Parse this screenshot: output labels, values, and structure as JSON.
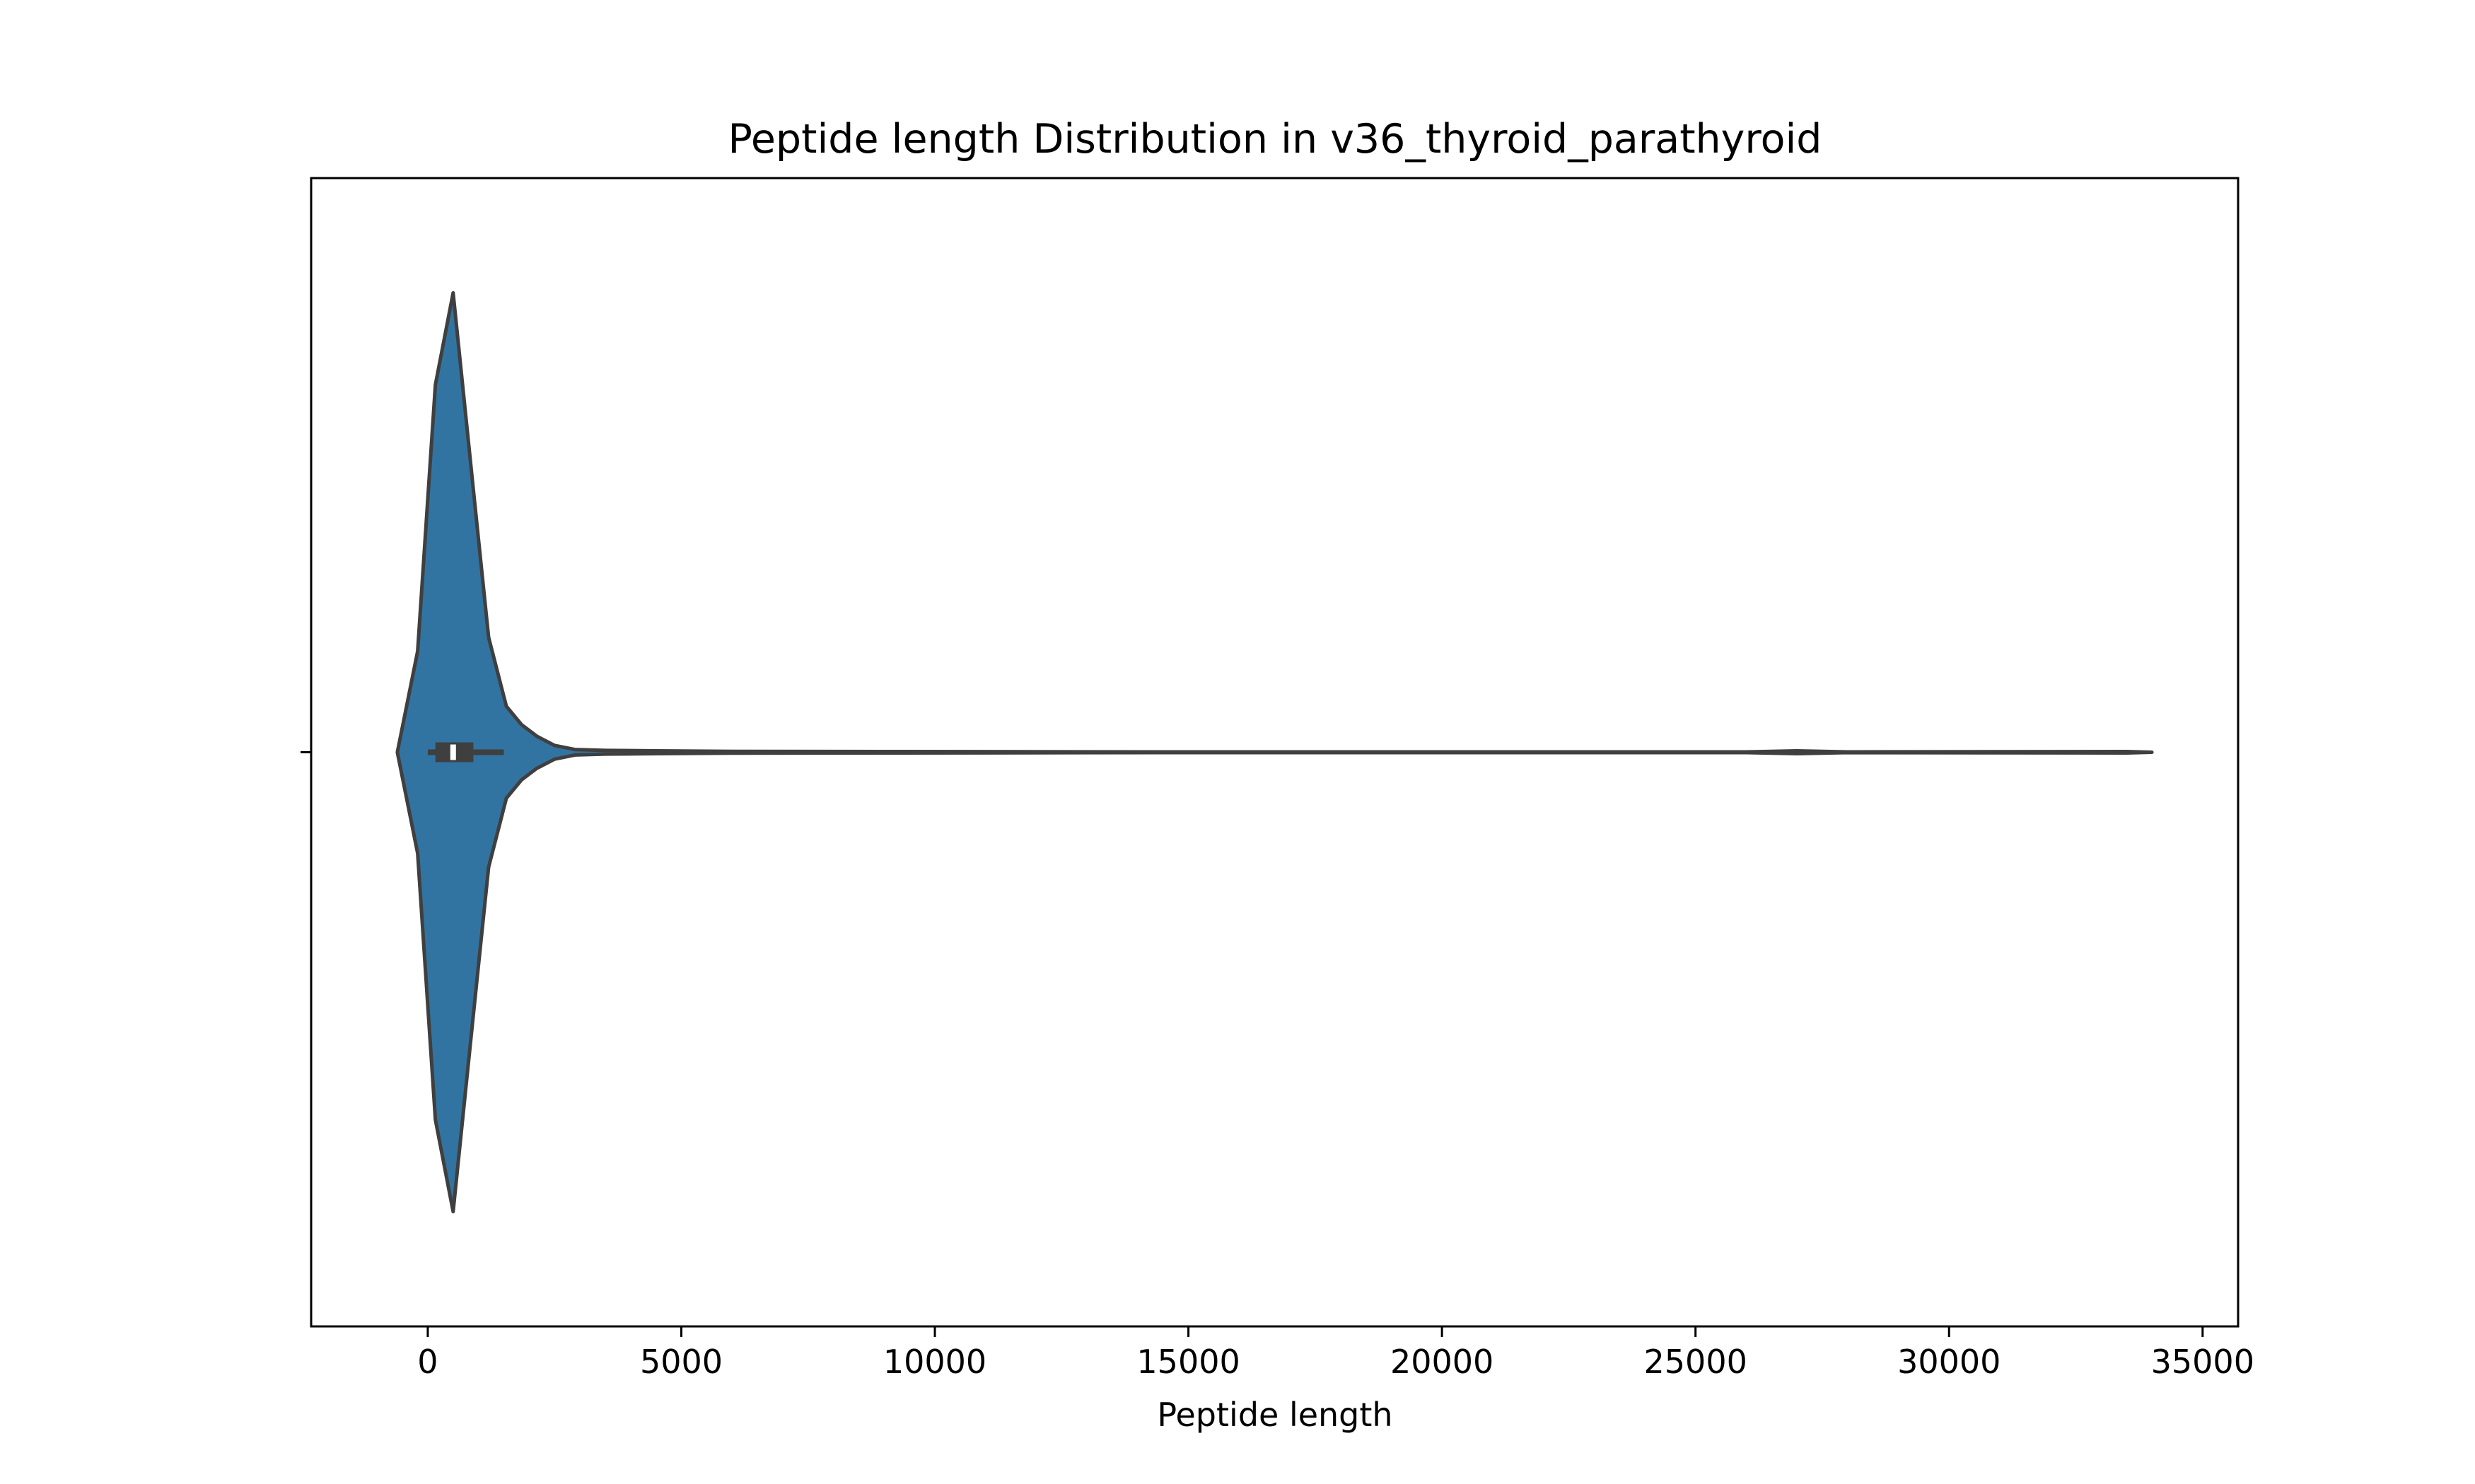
{
  "chart_data": {
    "type": "violin",
    "title": "Peptide length Distribution in v36_thyroid_parathyroid",
    "xlabel": "Peptide length",
    "ylabel": "",
    "orientation": "horizontal",
    "xlim": [
      -2300,
      35700
    ],
    "xticks": [
      0,
      5000,
      10000,
      15000,
      20000,
      25000,
      30000,
      35000
    ],
    "xtick_labels": [
      "0",
      "5000",
      "10000",
      "15000",
      "20000",
      "25000",
      "30000",
      "35000"
    ],
    "grid": false,
    "legend": "none",
    "series": [
      {
        "values_min": 0,
        "values_max": 34000,
        "q1": 150,
        "median": 500,
        "q3": 900,
        "whisker_low": 0,
        "whisker_high": 1500,
        "density": {
          "x": [
            -600,
            -200,
            150,
            500,
            900,
            1200,
            1550,
            1850,
            2150,
            2500,
            2900,
            3500,
            4500,
            6000,
            9000,
            15000,
            26000,
            27000,
            28000,
            33500,
            34000
          ],
          "y": [
            0.0,
            0.22,
            0.8,
            1.0,
            0.57,
            0.25,
            0.1,
            0.06,
            0.035,
            0.015,
            0.006,
            0.004,
            0.003,
            0.002,
            0.0015,
            0.0008,
            0.0008,
            0.003,
            0.0008,
            0.0015,
            0.0
          ]
        }
      }
    ],
    "colors": {
      "violin_fill": "#3274a1",
      "outline": "#3f3f3f",
      "box": "#3f3f3f",
      "median_marker": "#ffffff"
    }
  }
}
